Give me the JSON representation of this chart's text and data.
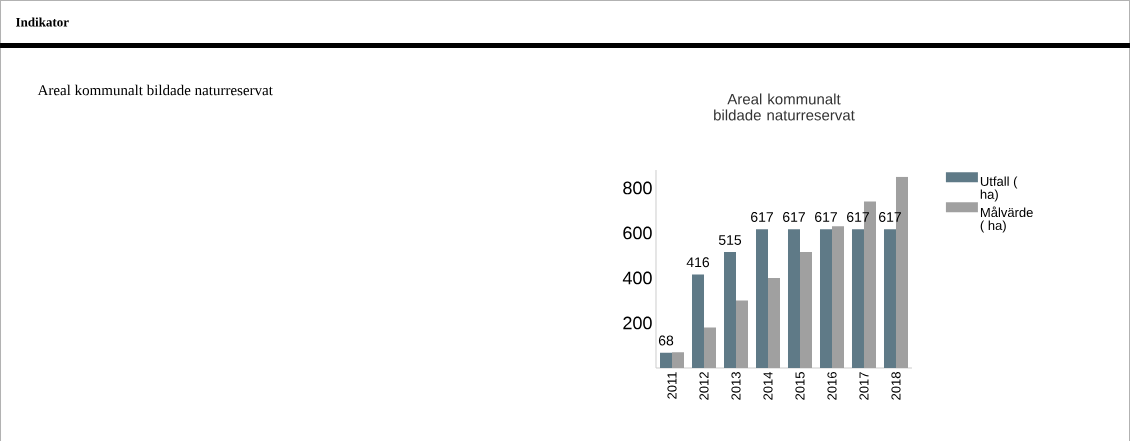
{
  "chart_data": {
    "type": "bar",
    "title": "Areal kommunalt bildade naturreservat",
    "annotations": [
      "Indikator",
      "Areal kommunalt bildade naturreservat"
    ],
    "categories": [
      "2011",
      "2012",
      "2013",
      "2014",
      "2015",
      "2016",
      "2017",
      "2018"
    ],
    "series": [
      {
        "name": "Utfall ( ha)",
        "color": "#5f7a87",
        "values": [
          68,
          416,
          515,
          617,
          617,
          617,
          617,
          617
        ],
        "value_labels": [
          "68",
          "416",
          "515",
          "617",
          "617",
          "617",
          "617",
          "617"
        ]
      },
      {
        "name": "Målvärde ( ha)",
        "color": "#a0a0a0",
        "values": [
          70,
          180,
          300,
          400,
          515,
          630,
          740,
          850
        ]
      }
    ],
    "ylim": [
      0,
      880
    ],
    "yticks": [
      200,
      400,
      600,
      800
    ],
    "grid": false,
    "legend": "right"
  }
}
